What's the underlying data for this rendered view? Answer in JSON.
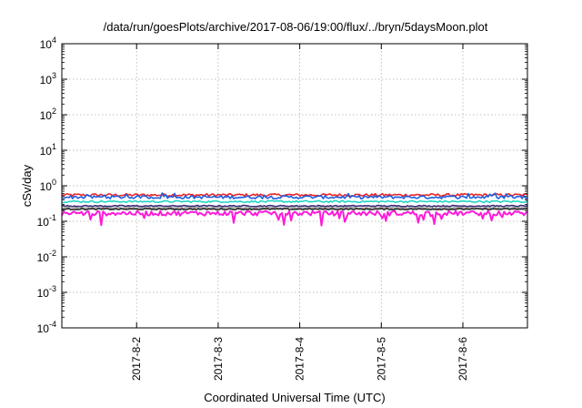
{
  "chart_data": {
    "type": "line",
    "title": "/data/run/goesPlots/archive/2017-08-06/19:00/flux/../bryn/5daysMoon.plot",
    "xlabel": "Coordinated Universal Time (UTC)",
    "ylabel": "cSv/day",
    "yscale": "log",
    "ylim": [
      0.0001,
      10000
    ],
    "xlim": [
      "2017-08-01 02:00",
      "2017-08-06 19:00"
    ],
    "grid": true,
    "y_ticks": [
      {
        "base": "10",
        "exp": "-4"
      },
      {
        "base": "10",
        "exp": "-3"
      },
      {
        "base": "10",
        "exp": "-2"
      },
      {
        "base": "10",
        "exp": "-1"
      },
      {
        "base": "10",
        "exp": "0"
      },
      {
        "base": "10",
        "exp": "1"
      },
      {
        "base": "10",
        "exp": "2"
      },
      {
        "base": "10",
        "exp": "3"
      },
      {
        "base": "10",
        "exp": "4"
      }
    ],
    "x_ticks": [
      {
        "label": "2017-8-2",
        "x": "2017-08-02 00:00"
      },
      {
        "label": "2017-8-3",
        "x": "2017-08-03 00:00"
      },
      {
        "label": "2017-8-4",
        "x": "2017-08-04 00:00"
      },
      {
        "label": "2017-8-5",
        "x": "2017-08-05 00:00"
      },
      {
        "label": "2017-8-6",
        "x": "2017-08-06 00:00"
      }
    ],
    "series": [
      {
        "color": "#e8262a",
        "level": 0.55,
        "variation": 0.18
      },
      {
        "color": "#1f5fe0",
        "level": 0.48,
        "variation": 0.2
      },
      {
        "color": "#22d3c8",
        "level": 0.36,
        "variation": 0.12
      },
      {
        "color": "#3a2a7a",
        "level": 0.27,
        "variation": 0.08
      },
      {
        "color": "#a0a0a0",
        "level": 0.24,
        "variation": 0.08
      },
      {
        "color": "#2a2a2a",
        "level": 0.22,
        "variation": 0.08
      },
      {
        "color": "#ff1ad9",
        "level": 0.17,
        "variation": 0.3
      }
    ]
  }
}
